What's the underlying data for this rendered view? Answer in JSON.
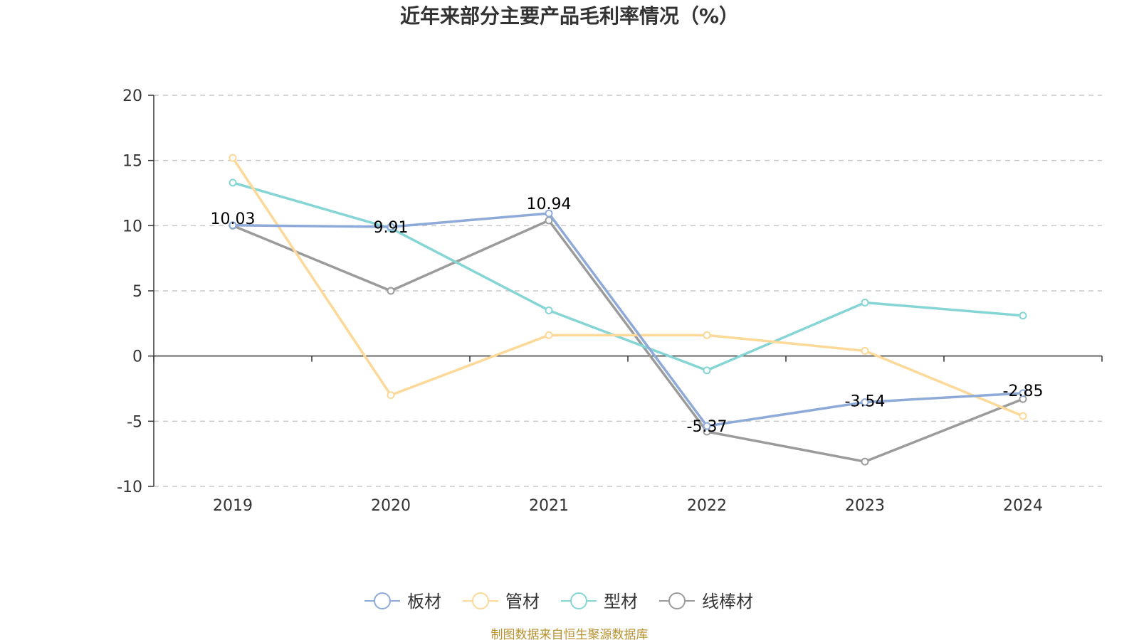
{
  "chart_data": {
    "type": "line",
    "title": "近年来部分主要产品毛利率情况（%）",
    "xlabel": "",
    "ylabel": "",
    "categories": [
      "2019",
      "2020",
      "2021",
      "2022",
      "2023",
      "2024"
    ],
    "ylim": [
      -10,
      20
    ],
    "yticks": [
      20,
      15,
      10,
      5,
      0,
      -5,
      -10
    ],
    "grid": true,
    "legend_position": "bottom",
    "series": [
      {
        "name": "板材",
        "color": "#8eaad8",
        "values": [
          10.03,
          9.91,
          10.94,
          -5.37,
          -3.54,
          -2.85
        ],
        "labels": [
          "10.03",
          "9.91",
          "10.94",
          "-5.37",
          "-3.54",
          "-2.85"
        ]
      },
      {
        "name": "管材",
        "color": "#fcd998",
        "values": [
          15.2,
          -3.0,
          1.6,
          1.6,
          0.4,
          -4.6
        ],
        "labels": []
      },
      {
        "name": "型材",
        "color": "#86d5d5",
        "values": [
          13.3,
          9.8,
          3.5,
          -1.1,
          4.1,
          3.1
        ],
        "labels": []
      },
      {
        "name": "线棒材",
        "color": "#9b9b9b",
        "values": [
          10.0,
          5.0,
          10.4,
          -5.8,
          -8.1,
          -3.3
        ],
        "labels": []
      }
    ],
    "source": "制图数据来自恒生聚源数据库"
  }
}
